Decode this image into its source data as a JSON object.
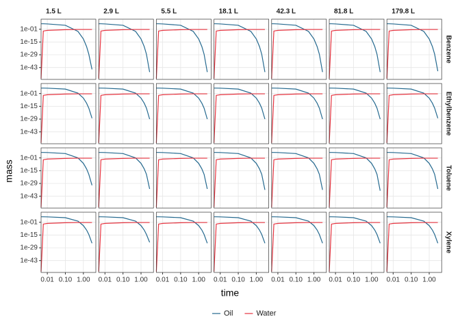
{
  "chart_data": {
    "type": "line",
    "x_label": "time",
    "y_label": "mass",
    "log_x": true,
    "log_y": true,
    "grid": true,
    "legend": "bottom",
    "xlim": [
      0.0045,
      4.9
    ],
    "xticks": [
      0.01,
      {
        "value": 0.1,
        "label": "0.10"
      },
      {
        "value": 1,
        "label": "1.00"
      }
    ],
    "ylim": [
      1e-56,
      10000000000.0
    ],
    "yticks": [
      {
        "value": 0.1,
        "label": "1e-01"
      },
      {
        "value": 1e-15,
        "label": "1e-15"
      },
      {
        "value": 1e-29,
        "label": "1e-29"
      },
      {
        "value": 1e-43,
        "label": "1e-43"
      }
    ],
    "x": [
      0.0045,
      0.006,
      0.01,
      0.1,
      0.5,
      1,
      1.5,
      2,
      3
    ],
    "series": [
      {
        "name": "Oil",
        "color": "#23688e"
      },
      {
        "name": "Water",
        "color": "#e5333f"
      }
    ],
    "columns": [
      "1.5 L",
      "2.9 L",
      "5.5 L",
      "18.1 L",
      "42.3 L",
      "81.8 L",
      "179.8 L"
    ],
    "rows": [
      {
        "label": "Benzene",
        "panels": [
          {
            "values": [
              [
                100000.0,
                100000.0,
                60000.0,
                2000.0,
                0.0004,
                2e-12,
                1e-20,
                4e-29,
                1e-45
              ],
              [
                1e-55,
                0.001,
                0.005,
                0.03,
                0.05,
                0.05,
                0.05,
                0.05,
                0.05
              ]
            ]
          },
          {
            "values": [
              [
                100000.0,
                100000.0,
                60000.0,
                2000.0,
                0.0004,
                2e-12,
                1e-20,
                4e-29,
                1e-48
              ],
              [
                1e-55,
                0.001,
                0.005,
                0.03,
                0.05,
                0.05,
                0.05,
                0.05,
                0.05
              ]
            ]
          },
          {
            "values": [
              [
                100000.0,
                100000.0,
                60000.0,
                2000.0,
                0.0004,
                2e-12,
                1e-20,
                4e-29,
                1e-48
              ],
              [
                1e-55,
                0.001,
                0.005,
                0.03,
                0.05,
                0.05,
                0.05,
                0.05,
                0.05
              ]
            ]
          },
          {
            "values": [
              [
                100000.0,
                100000.0,
                60000.0,
                2000.0,
                0.0004,
                2e-12,
                1e-20,
                4e-29,
                1e-48
              ],
              [
                1e-55,
                0.001,
                0.005,
                0.03,
                0.05,
                0.05,
                0.05,
                0.05,
                0.05
              ]
            ]
          },
          {
            "values": [
              [
                100000.0,
                100000.0,
                60000.0,
                2000.0,
                0.0004,
                2e-12,
                1e-20,
                4e-29,
                1e-48
              ],
              [
                1e-55,
                0.001,
                0.005,
                0.03,
                0.05,
                0.05,
                0.05,
                0.05,
                0.05
              ]
            ]
          },
          {
            "values": [
              [
                100000.0,
                100000.0,
                60000.0,
                2000.0,
                0.0004,
                2e-12,
                1e-20,
                4e-29,
                1e-48
              ],
              [
                1e-55,
                0.001,
                0.005,
                0.03,
                0.05,
                0.05,
                0.05,
                0.05,
                0.05
              ]
            ]
          },
          {
            "values": [
              [
                100000.0,
                100000.0,
                60000.0,
                2000.0,
                0.0004,
                2e-12,
                1e-20,
                4e-29,
                1e-47
              ],
              [
                1e-55,
                0.001,
                0.005,
                0.03,
                0.05,
                0.05,
                0.05,
                0.05,
                0.05
              ]
            ]
          }
        ]
      },
      {
        "label": "Ethylbenzene",
        "panels": [
          {
            "values": [
              [
                100000.0,
                100000.0,
                80000.0,
                8000.0,
                0.3,
                1e-06,
                3e-12,
                1e-17,
                1e-28
              ],
              [
                1e-55,
                0.001,
                0.005,
                0.03,
                0.05,
                0.05,
                0.05,
                0.05,
                0.05
              ]
            ]
          },
          {
            "values": [
              [
                100000.0,
                100000.0,
                80000.0,
                8000.0,
                0.3,
                1e-06,
                3e-12,
                1e-17,
                1e-29
              ],
              [
                1e-55,
                0.001,
                0.005,
                0.03,
                0.05,
                0.05,
                0.05,
                0.05,
                0.05
              ]
            ]
          },
          {
            "values": [
              [
                100000.0,
                100000.0,
                80000.0,
                8000.0,
                0.3,
                1e-06,
                3e-12,
                1e-17,
                1e-29
              ],
              [
                1e-55,
                0.001,
                0.005,
                0.03,
                0.05,
                0.05,
                0.05,
                0.05,
                0.05
              ]
            ]
          },
          {
            "values": [
              [
                100000.0,
                100000.0,
                80000.0,
                8000.0,
                0.3,
                1e-06,
                3e-12,
                1e-17,
                1e-29
              ],
              [
                1e-55,
                0.001,
                0.005,
                0.03,
                0.05,
                0.05,
                0.05,
                0.05,
                0.05
              ]
            ]
          },
          {
            "values": [
              [
                100000.0,
                100000.0,
                80000.0,
                8000.0,
                0.3,
                1e-06,
                3e-12,
                1e-17,
                1e-29
              ],
              [
                1e-55,
                0.001,
                0.005,
                0.03,
                0.05,
                0.05,
                0.05,
                0.05,
                0.05
              ]
            ]
          },
          {
            "values": [
              [
                100000.0,
                100000.0,
                80000.0,
                8000.0,
                0.3,
                1e-06,
                3e-12,
                1e-17,
                1e-29
              ],
              [
                1e-55,
                0.001,
                0.005,
                0.03,
                0.05,
                0.05,
                0.05,
                0.05,
                0.05
              ]
            ]
          },
          {
            "values": [
              [
                100000.0,
                100000.0,
                80000.0,
                8000.0,
                0.3,
                1e-06,
                3e-12,
                1e-17,
                1e-28
              ],
              [
                1e-55,
                0.001,
                0.005,
                0.03,
                0.05,
                0.05,
                0.05,
                0.05,
                0.05
              ]
            ]
          }
        ]
      },
      {
        "label": "Toluene",
        "panels": [
          {
            "values": [
              [
                100000.0,
                100000.0,
                80000.0,
                6000.0,
                0.1,
                1e-07,
                1e-13,
                1e-19,
                1e-31
              ],
              [
                1e-55,
                0.001,
                0.005,
                0.03,
                0.05,
                0.05,
                0.05,
                0.05,
                0.05
              ]
            ]
          },
          {
            "values": [
              [
                100000.0,
                100000.0,
                80000.0,
                6000.0,
                0.1,
                1e-07,
                1e-13,
                1e-19,
                1e-35
              ],
              [
                1e-55,
                0.001,
                0.005,
                0.03,
                0.05,
                0.05,
                0.05,
                0.05,
                0.05
              ]
            ]
          },
          {
            "values": [
              [
                100000.0,
                100000.0,
                80000.0,
                6000.0,
                0.1,
                1e-07,
                1e-13,
                1e-19,
                1e-35
              ],
              [
                1e-55,
                0.001,
                0.005,
                0.03,
                0.05,
                0.05,
                0.05,
                0.05,
                0.05
              ]
            ]
          },
          {
            "values": [
              [
                100000.0,
                100000.0,
                80000.0,
                6000.0,
                0.1,
                1e-07,
                1e-13,
                1e-19,
                1e-36
              ],
              [
                1e-55,
                0.001,
                0.005,
                0.03,
                0.05,
                0.05,
                0.05,
                0.05,
                0.05
              ]
            ]
          },
          {
            "values": [
              [
                100000.0,
                100000.0,
                80000.0,
                6000.0,
                0.1,
                1e-07,
                1e-13,
                1e-19,
                1e-36
              ],
              [
                1e-55,
                0.001,
                0.005,
                0.03,
                0.05,
                0.05,
                0.05,
                0.05,
                0.05
              ]
            ]
          },
          {
            "values": [
              [
                100000.0,
                100000.0,
                80000.0,
                6000.0,
                0.1,
                1e-07,
                1e-13,
                1e-19,
                1e-37
              ],
              [
                1e-55,
                0.001,
                0.005,
                0.03,
                0.05,
                0.05,
                0.05,
                0.05,
                0.05
              ]
            ]
          },
          {
            "values": [
              [
                100000.0,
                100000.0,
                80000.0,
                6000.0,
                0.1,
                1e-07,
                1e-13,
                1e-19,
                1e-35
              ],
              [
                1e-55,
                0.001,
                0.005,
                0.03,
                0.05,
                0.05,
                0.05,
                0.05,
                0.05
              ]
            ]
          }
        ]
      },
      {
        "label": "Xylene",
        "panels": [
          {
            "values": [
              [
                100000.0,
                100000.0,
                80000.0,
                10000.0,
                1.6,
                2e-05,
                3e-10,
                4e-15,
                1e-24
              ],
              [
                1e-55,
                0.001,
                0.005,
                0.03,
                0.05,
                0.05,
                0.05,
                0.05,
                0.05
              ]
            ]
          },
          {
            "values": [
              [
                100000.0,
                100000.0,
                80000.0,
                10000.0,
                1.6,
                2e-05,
                3e-10,
                4e-15,
                1e-23
              ],
              [
                1e-55,
                0.001,
                0.005,
                0.03,
                0.05,
                0.05,
                0.05,
                0.05,
                0.05
              ]
            ]
          },
          {
            "values": [
              [
                100000.0,
                100000.0,
                80000.0,
                10000.0,
                1.6,
                2e-05,
                3e-10,
                4e-15,
                1e-24
              ],
              [
                1e-55,
                0.001,
                0.005,
                0.03,
                0.05,
                0.05,
                0.05,
                0.05,
                0.05
              ]
            ]
          },
          {
            "values": [
              [
                100000.0,
                100000.0,
                80000.0,
                10000.0,
                1.6,
                2e-05,
                3e-10,
                4e-15,
                1e-24
              ],
              [
                1e-55,
                0.001,
                0.005,
                0.03,
                0.05,
                0.05,
                0.05,
                0.05,
                0.05
              ]
            ]
          },
          {
            "values": [
              [
                100000.0,
                100000.0,
                80000.0,
                10000.0,
                1.6,
                2e-05,
                3e-10,
                4e-15,
                1e-24
              ],
              [
                1e-55,
                0.001,
                0.005,
                0.03,
                0.05,
                0.05,
                0.05,
                0.05,
                0.05
              ]
            ]
          },
          {
            "values": [
              [
                100000.0,
                100000.0,
                80000.0,
                10000.0,
                1.6,
                2e-05,
                3e-10,
                4e-15,
                1e-24
              ],
              [
                1e-55,
                0.001,
                0.005,
                0.03,
                0.05,
                0.05,
                0.05,
                0.05,
                0.05
              ]
            ]
          },
          {
            "values": [
              [
                100000.0,
                100000.0,
                80000.0,
                10000.0,
                1.6,
                2e-05,
                3e-10,
                4e-15,
                1e-24
              ],
              [
                1e-55,
                0.001,
                0.005,
                0.03,
                0.05,
                0.05,
                0.05,
                0.05,
                0.05
              ]
            ]
          }
        ]
      }
    ]
  }
}
